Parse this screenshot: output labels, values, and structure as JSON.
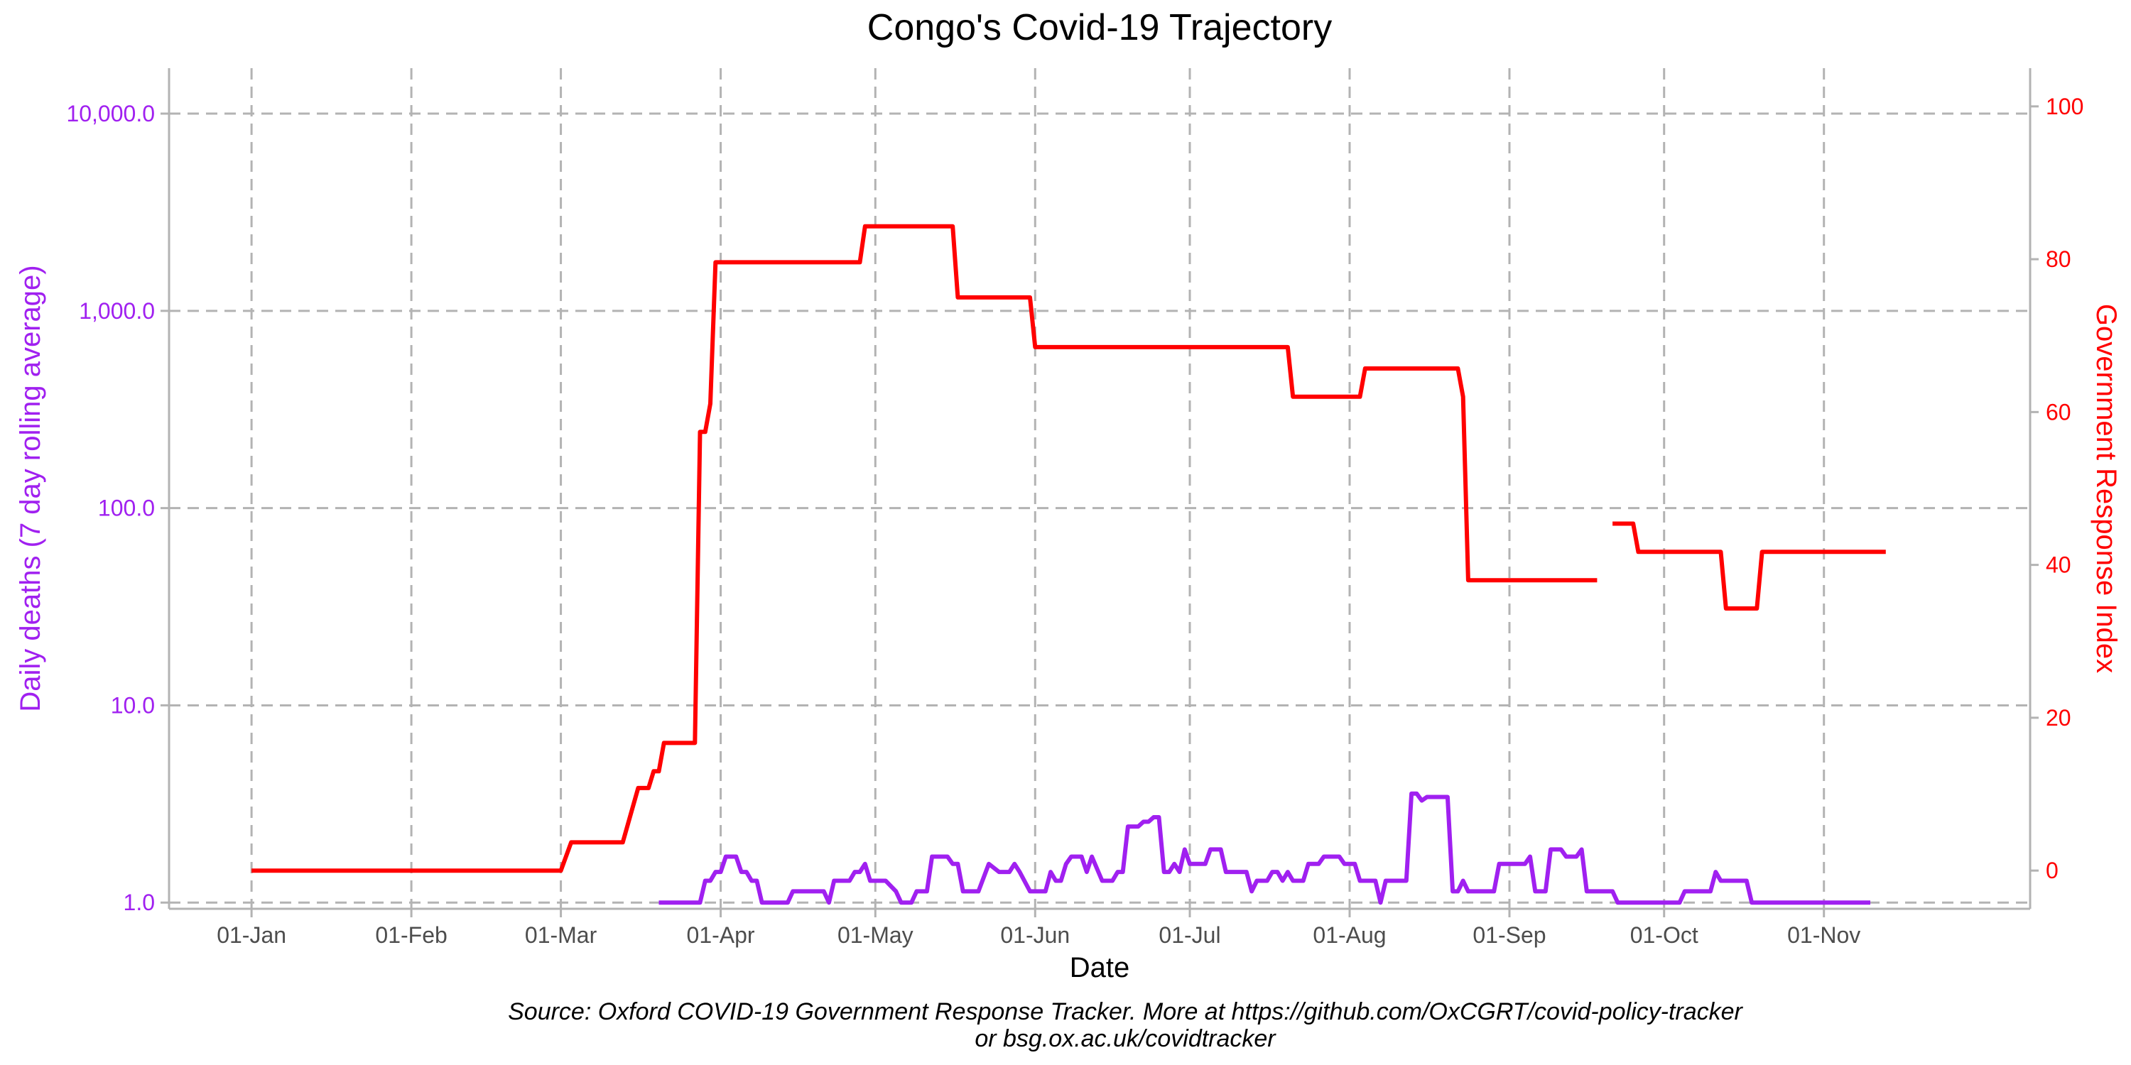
{
  "chart_data": {
    "type": "line",
    "title": "Congo's Covid-19 Trajectory",
    "xlabel": "Date",
    "ylabel_left": "Daily deaths (7 day rolling average)",
    "ylabel_right": "Government Response Index",
    "caption_line1": "Source: Oxford COVID-19 Government Response Tracker. More at https://github.com/OxCGRT/covid-policy-tracker",
    "caption_line2": "or bsg.ox.ac.uk/covidtracker",
    "x_tick_labels": [
      "01-Jan",
      "01-Feb",
      "01-Mar",
      "01-Apr",
      "01-May",
      "01-Jun",
      "01-Jul",
      "01-Aug",
      "01-Sep",
      "01-Oct",
      "01-Nov"
    ],
    "x_tick_dates": [
      "2020-01-01",
      "2020-02-01",
      "2020-03-01",
      "2020-04-01",
      "2020-05-01",
      "2020-06-01",
      "2020-07-01",
      "2020-08-01",
      "2020-09-01",
      "2020-10-01",
      "2020-11-01"
    ],
    "xlim": [
      "2019-12-16",
      "2020-12-11"
    ],
    "y_left_scale": "log10",
    "y_left_ticks": [
      1,
      10,
      100,
      1000,
      10000
    ],
    "y_left_tick_labels": [
      "1.0",
      "10.0",
      "100.0",
      "1,000.0",
      "10,000.0"
    ],
    "y_left_lim": [
      0.93,
      17000
    ],
    "y_right_ticks": [
      0,
      20,
      40,
      60,
      80,
      100
    ],
    "y_right_tick_labels": [
      "0",
      "20",
      "40",
      "60",
      "80",
      "100"
    ],
    "y_right_lim": [
      -5,
      105
    ],
    "grid": true,
    "series": [
      {
        "name": "",
        "axis": "right",
        "color": "#ff0000",
        "segments": [
          [
            [
              "2020-01-01",
              0
            ],
            [
              "2020-03-01",
              0
            ],
            [
              "2020-03-03",
              3.7
            ],
            [
              "2020-03-13",
              3.7
            ],
            [
              "2020-03-16",
              10.8
            ],
            [
              "2020-03-18",
              10.8
            ],
            [
              "2020-03-19",
              13
            ],
            [
              "2020-03-20",
              13
            ],
            [
              "2020-03-21",
              16.7
            ],
            [
              "2020-03-27",
              16.7
            ],
            [
              "2020-03-28",
              57.4
            ],
            [
              "2020-03-29",
              57.4
            ],
            [
              "2020-03-30",
              61.1
            ],
            [
              "2020-03-31",
              79.6
            ],
            [
              "2020-04-28",
              79.6
            ],
            [
              "2020-04-29",
              84.3
            ],
            [
              "2020-05-16",
              84.3
            ],
            [
              "2020-05-17",
              75
            ],
            [
              "2020-05-31",
              75
            ],
            [
              "2020-06-01",
              68.5
            ],
            [
              "2020-07-20",
              68.5
            ],
            [
              "2020-07-21",
              62
            ],
            [
              "2020-08-03",
              62
            ],
            [
              "2020-08-04",
              65.7
            ],
            [
              "2020-08-22",
              65.7
            ],
            [
              "2020-08-23",
              62
            ],
            [
              "2020-08-24",
              38
            ],
            [
              "2020-09-18",
              38
            ]
          ],
          [
            [
              "2020-09-21",
              45.4
            ],
            [
              "2020-09-25",
              45.4
            ],
            [
              "2020-09-26",
              41.7
            ],
            [
              "2020-10-12",
              41.7
            ],
            [
              "2020-10-13",
              34.3
            ],
            [
              "2020-10-19",
              34.3
            ],
            [
              "2020-10-20",
              41.7
            ],
            [
              "2020-11-13",
              41.7
            ]
          ]
        ]
      },
      {
        "name": "",
        "axis": "left",
        "color": "#a020f0",
        "segments": [
          [
            [
              "2020-03-20",
              1
            ],
            [
              "2020-03-28",
              1
            ],
            [
              "2020-03-29",
              1.29
            ],
            [
              "2020-03-30",
              1.29
            ],
            [
              "2020-03-31",
              1.43
            ],
            [
              "2020-04-01",
              1.43
            ],
            [
              "2020-04-02",
              1.71
            ],
            [
              "2020-04-04",
              1.71
            ],
            [
              "2020-04-05",
              1.43
            ],
            [
              "2020-04-06",
              1.43
            ],
            [
              "2020-04-07",
              1.29
            ],
            [
              "2020-04-08",
              1.29
            ],
            [
              "2020-04-09",
              1
            ],
            [
              "2020-04-14",
              1
            ],
            [
              "2020-04-15",
              1.14
            ],
            [
              "2020-04-21",
              1.14
            ],
            [
              "2020-04-22",
              1
            ],
            [
              "2020-04-23",
              1.29
            ],
            [
              "2020-04-26",
              1.29
            ],
            [
              "2020-04-27",
              1.43
            ],
            [
              "2020-04-28",
              1.43
            ],
            [
              "2020-04-29",
              1.57
            ],
            [
              "2020-04-30",
              1.29
            ],
            [
              "2020-05-03",
              1.29
            ],
            [
              "2020-05-05",
              1.14
            ],
            [
              "2020-05-06",
              1
            ],
            [
              "2020-05-08",
              1
            ],
            [
              "2020-05-09",
              1.14
            ],
            [
              "2020-05-11",
              1.14
            ],
            [
              "2020-05-12",
              1.71
            ],
            [
              "2020-05-15",
              1.71
            ],
            [
              "2020-05-16",
              1.57
            ],
            [
              "2020-05-17",
              1.57
            ],
            [
              "2020-05-18",
              1.14
            ],
            [
              "2020-05-21",
              1.14
            ],
            [
              "2020-05-23",
              1.57
            ],
            [
              "2020-05-25",
              1.43
            ],
            [
              "2020-05-27",
              1.43
            ],
            [
              "2020-05-28",
              1.57
            ],
            [
              "2020-05-29",
              1.43
            ],
            [
              "2020-05-31",
              1.14
            ],
            [
              "2020-06-03",
              1.14
            ],
            [
              "2020-06-04",
              1.43
            ],
            [
              "2020-06-05",
              1.29
            ],
            [
              "2020-06-06",
              1.29
            ],
            [
              "2020-06-07",
              1.57
            ],
            [
              "2020-06-08",
              1.71
            ],
            [
              "2020-06-10",
              1.71
            ],
            [
              "2020-06-11",
              1.43
            ],
            [
              "2020-06-12",
              1.71
            ],
            [
              "2020-06-14",
              1.29
            ],
            [
              "2020-06-16",
              1.29
            ],
            [
              "2020-06-17",
              1.43
            ],
            [
              "2020-06-18",
              1.43
            ],
            [
              "2020-06-19",
              2.43
            ],
            [
              "2020-06-21",
              2.43
            ],
            [
              "2020-06-22",
              2.57
            ],
            [
              "2020-06-23",
              2.57
            ],
            [
              "2020-06-24",
              2.71
            ],
            [
              "2020-06-25",
              2.71
            ],
            [
              "2020-06-26",
              1.43
            ],
            [
              "2020-06-27",
              1.43
            ],
            [
              "2020-06-28",
              1.57
            ],
            [
              "2020-06-29",
              1.43
            ],
            [
              "2020-06-30",
              1.86
            ],
            [
              "2020-07-01",
              1.57
            ],
            [
              "2020-07-04",
              1.57
            ],
            [
              "2020-07-05",
              1.86
            ],
            [
              "2020-07-07",
              1.86
            ],
            [
              "2020-07-08",
              1.43
            ],
            [
              "2020-07-12",
              1.43
            ],
            [
              "2020-07-13",
              1.14
            ],
            [
              "2020-07-14",
              1.29
            ],
            [
              "2020-07-16",
              1.29
            ],
            [
              "2020-07-17",
              1.43
            ],
            [
              "2020-07-18",
              1.43
            ],
            [
              "2020-07-19",
              1.29
            ],
            [
              "2020-07-20",
              1.43
            ],
            [
              "2020-07-21",
              1.29
            ],
            [
              "2020-07-23",
              1.29
            ],
            [
              "2020-07-24",
              1.57
            ],
            [
              "2020-07-26",
              1.57
            ],
            [
              "2020-07-27",
              1.71
            ],
            [
              "2020-07-30",
              1.71
            ],
            [
              "2020-07-31",
              1.57
            ],
            [
              "2020-08-02",
              1.57
            ],
            [
              "2020-08-03",
              1.29
            ],
            [
              "2020-08-06",
              1.29
            ],
            [
              "2020-08-07",
              1
            ],
            [
              "2020-08-08",
              1.29
            ],
            [
              "2020-08-12",
              1.29
            ],
            [
              "2020-08-13",
              3.57
            ],
            [
              "2020-08-14",
              3.57
            ],
            [
              "2020-08-15",
              3.29
            ],
            [
              "2020-08-16",
              3.43
            ],
            [
              "2020-08-20",
              3.43
            ],
            [
              "2020-08-21",
              1.14
            ],
            [
              "2020-08-22",
              1.14
            ],
            [
              "2020-08-23",
              1.29
            ],
            [
              "2020-08-24",
              1.14
            ],
            [
              "2020-08-29",
              1.14
            ],
            [
              "2020-08-30",
              1.57
            ],
            [
              "2020-09-04",
              1.57
            ],
            [
              "2020-09-05",
              1.71
            ],
            [
              "2020-09-06",
              1.14
            ],
            [
              "2020-09-08",
              1.14
            ],
            [
              "2020-09-09",
              1.86
            ],
            [
              "2020-09-11",
              1.86
            ],
            [
              "2020-09-12",
              1.71
            ],
            [
              "2020-09-14",
              1.71
            ],
            [
              "2020-09-15",
              1.86
            ],
            [
              "2020-09-16",
              1.14
            ],
            [
              "2020-09-21",
              1.14
            ],
            [
              "2020-09-22",
              1
            ],
            [
              "2020-10-04",
              1
            ],
            [
              "2020-10-05",
              1.14
            ],
            [
              "2020-10-10",
              1.14
            ],
            [
              "2020-10-11",
              1.43
            ],
            [
              "2020-10-12",
              1.29
            ],
            [
              "2020-10-17",
              1.29
            ],
            [
              "2020-10-18",
              1
            ],
            [
              "2020-11-10",
              1
            ]
          ]
        ]
      }
    ]
  }
}
